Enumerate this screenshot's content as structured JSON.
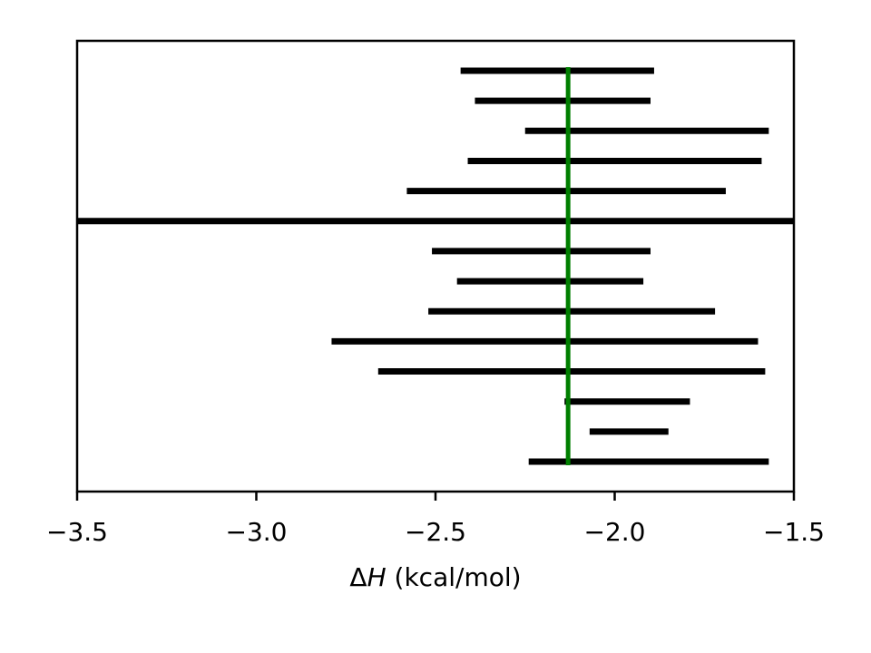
{
  "chart_data": {
    "type": "interval",
    "title": "",
    "xlabel": "ΔH (kcal/mol)",
    "ylabel": "",
    "xlim": [
      -3.5,
      -1.5
    ],
    "xticks": [
      -3.5,
      -3.0,
      -2.5,
      -2.0,
      -1.5
    ],
    "xtick_labels": [
      "−3.5",
      "−3.0",
      "−2.5",
      "−2.0",
      "−1.5"
    ],
    "grid": false,
    "reference_line": {
      "x": -2.13,
      "color": "#007f00"
    },
    "intervals": [
      {
        "low": -2.43,
        "high": -1.89
      },
      {
        "low": -2.39,
        "high": -1.9
      },
      {
        "low": -2.25,
        "high": -1.57
      },
      {
        "low": -2.41,
        "high": -1.59
      },
      {
        "low": -2.58,
        "high": -1.69
      },
      {
        "low": -3.5,
        "high": -1.5
      },
      {
        "low": -2.51,
        "high": -1.9
      },
      {
        "low": -2.44,
        "high": -1.92
      },
      {
        "low": -2.52,
        "high": -1.72
      },
      {
        "low": -2.79,
        "high": -1.6
      },
      {
        "low": -2.66,
        "high": -1.58
      },
      {
        "low": -2.14,
        "high": -1.79
      },
      {
        "low": -2.07,
        "high": -1.85
      },
      {
        "low": -2.24,
        "high": -1.57
      }
    ],
    "interval_color": "#000000"
  }
}
